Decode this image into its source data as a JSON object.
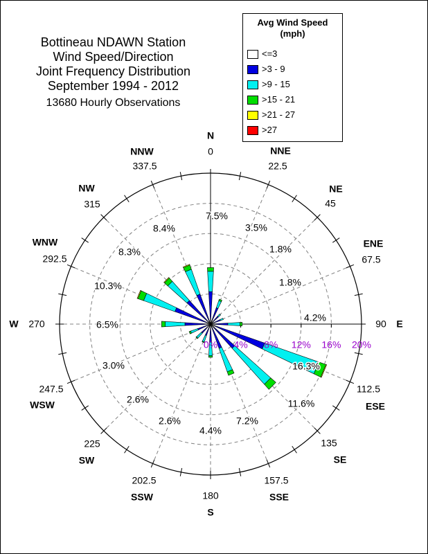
{
  "title_lines": [
    "Bottineau NDAWN Station",
    "Wind Speed/Direction",
    "Joint Frequency Distribution",
    "September 1994 - 2012"
  ],
  "subtitle": "13680 Hourly Observations",
  "legend": {
    "title_line1": "Avg Wind Speed",
    "title_line2": "(mph)",
    "entries": [
      {
        "label": "<=3",
        "color": "#ffffff"
      },
      {
        "label": ">3 - 9",
        "color": "#0000e0"
      },
      {
        "label": ">9 - 15",
        "color": "#00f0f0"
      },
      {
        "label": ">15 - 21",
        "color": "#00dd00"
      },
      {
        "label": ">21 - 27",
        "color": "#ffff00"
      },
      {
        "label": ">27",
        "color": "#ff0000"
      }
    ]
  },
  "colors": {
    "radial_scale": "#9900cc",
    "grid": "#808080",
    "axis": "#000000"
  },
  "chart_data": {
    "type": "wind-rose",
    "radial_unit": "%",
    "radial_max": 20,
    "radial_ticks": [
      0,
      4,
      8,
      12,
      16,
      20
    ],
    "radial_tick_labels": [
      "0%",
      "4%",
      "8%",
      "12%",
      "16%",
      "20%"
    ],
    "grid": true,
    "direction_labels": [
      {
        "name": "N",
        "deg": 0,
        "deg_label": "0",
        "frequency_label": "7.5%"
      },
      {
        "name": "NNE",
        "deg": 22.5,
        "deg_label": "22.5",
        "frequency_label": "3.5%"
      },
      {
        "name": "NE",
        "deg": 45,
        "deg_label": "45",
        "frequency_label": "1.8%"
      },
      {
        "name": "ENE",
        "deg": 67.5,
        "deg_label": "67.5",
        "frequency_label": "1.8%"
      },
      {
        "name": "E",
        "deg": 90,
        "deg_label": "90",
        "frequency_label": "4.2%"
      },
      {
        "name": "ESE",
        "deg": 112.5,
        "deg_label": "112.5",
        "frequency_label": "16.3%"
      },
      {
        "name": "SE",
        "deg": 135,
        "deg_label": "135",
        "frequency_label": "11.6%"
      },
      {
        "name": "SSE",
        "deg": 157.5,
        "deg_label": "157.5",
        "frequency_label": "7.2%"
      },
      {
        "name": "S",
        "deg": 180,
        "deg_label": "180",
        "frequency_label": "4.4%"
      },
      {
        "name": "SSW",
        "deg": 202.5,
        "deg_label": "202.5",
        "frequency_label": "2.6%"
      },
      {
        "name": "SW",
        "deg": 225,
        "deg_label": "225",
        "frequency_label": "2.6%"
      },
      {
        "name": "WSW",
        "deg": 247.5,
        "deg_label": "247.5",
        "frequency_label": "3.0%"
      },
      {
        "name": "W",
        "deg": 270,
        "deg_label": "270",
        "frequency_label": "6.5%"
      },
      {
        "name": "WNW",
        "deg": 292.5,
        "deg_label": "292.5",
        "frequency_label": "10.3%"
      },
      {
        "name": "NW",
        "deg": 315,
        "deg_label": "315",
        "frequency_label": "8.3%"
      },
      {
        "name": "NNW",
        "deg": 337.5,
        "deg_label": "337.5",
        "frequency_label": "8.4%"
      }
    ],
    "speed_classes": [
      "<=3",
      ">3 - 9",
      ">9 - 15",
      ">15 - 21",
      ">21 - 27",
      ">27"
    ],
    "series": [
      {
        "direction": "N",
        "segments": [
          0.5,
          3.8,
          2.7,
          0.5,
          0,
          0
        ]
      },
      {
        "direction": "NNE",
        "segments": [
          0.5,
          1.8,
          1.0,
          0.2,
          0,
          0
        ]
      },
      {
        "direction": "NE",
        "segments": [
          0.4,
          1.0,
          0.4,
          0,
          0,
          0
        ]
      },
      {
        "direction": "ENE",
        "segments": [
          0.4,
          1.0,
          0.4,
          0,
          0,
          0
        ]
      },
      {
        "direction": "E",
        "segments": [
          0.5,
          1.8,
          1.6,
          0.3,
          0,
          0
        ]
      },
      {
        "direction": "ESE",
        "segments": [
          0.6,
          7.0,
          7.6,
          1.0,
          0.1,
          0
        ]
      },
      {
        "direction": "SE",
        "segments": [
          0.5,
          3.8,
          6.4,
          0.9,
          0,
          0
        ]
      },
      {
        "direction": "SSE",
        "segments": [
          0.4,
          3.0,
          3.3,
          0.5,
          0,
          0
        ]
      },
      {
        "direction": "S",
        "segments": [
          0.4,
          2.0,
          1.8,
          0.2,
          0,
          0
        ]
      },
      {
        "direction": "SSW",
        "segments": [
          0.3,
          1.3,
          0.9,
          0.1,
          0,
          0
        ]
      },
      {
        "direction": "SW",
        "segments": [
          0.3,
          1.3,
          0.9,
          0.1,
          0,
          0
        ]
      },
      {
        "direction": "WSW",
        "segments": [
          0.4,
          1.4,
          1.0,
          0.2,
          0,
          0
        ]
      },
      {
        "direction": "W",
        "segments": [
          0.4,
          3.0,
          2.6,
          0.5,
          0,
          0
        ]
      },
      {
        "direction": "WNW",
        "segments": [
          0.4,
          4.6,
          4.4,
          0.8,
          0.1,
          0
        ]
      },
      {
        "direction": "NW",
        "segments": [
          0.4,
          3.8,
          3.4,
          0.6,
          0.1,
          0
        ]
      },
      {
        "direction": "NNW",
        "segments": [
          0.4,
          3.8,
          3.5,
          0.6,
          0.1,
          0
        ]
      }
    ]
  }
}
